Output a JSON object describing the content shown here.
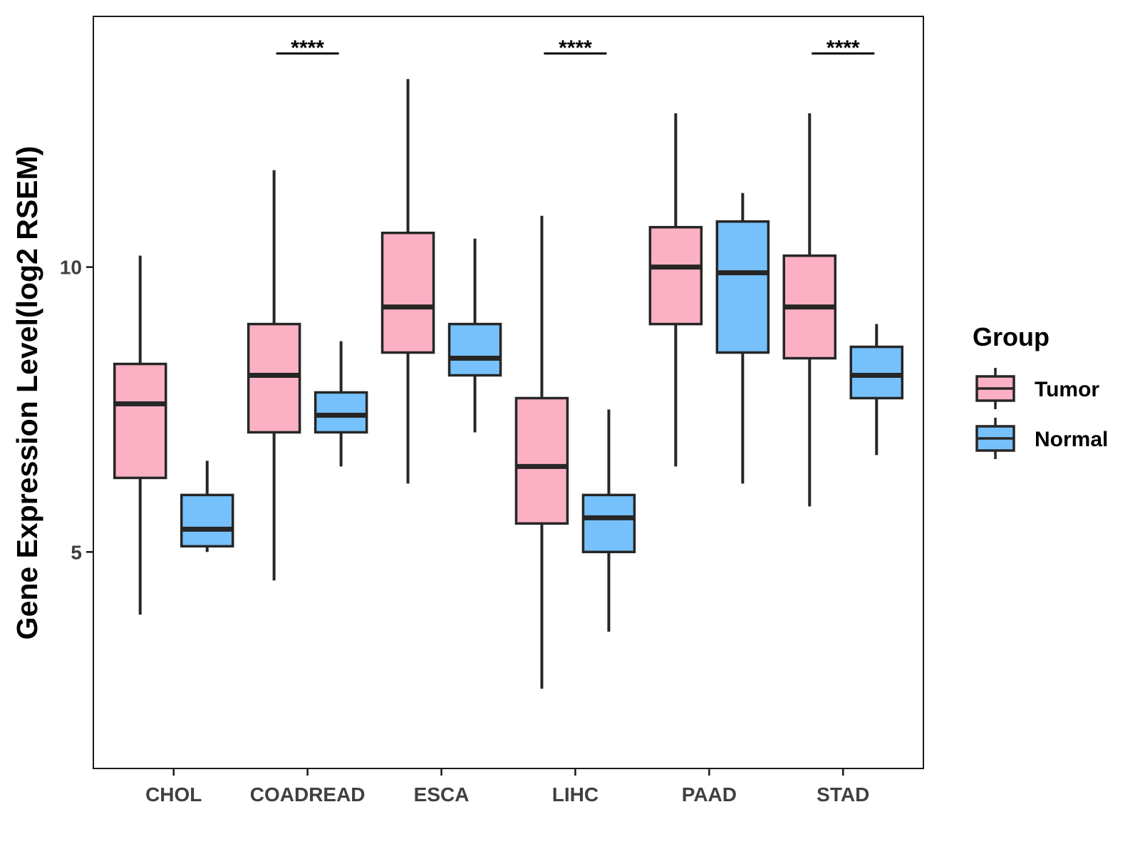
{
  "chart_data": {
    "type": "boxplot",
    "title": "",
    "xlabel": "",
    "ylabel": "Gene Expression Level(log2 RSEM)",
    "ylim": [
      1.2,
      14.4
    ],
    "y_ticks": [
      5,
      10
    ],
    "categories": [
      "CHOL",
      "COADREAD",
      "ESCA",
      "LIHC",
      "PAAD",
      "STAD"
    ],
    "legend": {
      "title": "Group",
      "position": "right",
      "entries": [
        {
          "name": "Tumor",
          "color": "#FBB1C3"
        },
        {
          "name": "Normal",
          "color": "#76C1FB"
        }
      ]
    },
    "series": [
      {
        "name": "Tumor",
        "color": "#FBB1C3",
        "boxes": [
          {
            "whisker_low": 3.9,
            "q1": 6.3,
            "median": 7.6,
            "q3": 8.3,
            "whisker_high": 10.2
          },
          {
            "whisker_low": 4.5,
            "q1": 7.1,
            "median": 8.1,
            "q3": 9.0,
            "whisker_high": 11.7
          },
          {
            "whisker_low": 6.2,
            "q1": 8.5,
            "median": 9.3,
            "q3": 10.6,
            "whisker_high": 13.3
          },
          {
            "whisker_low": 2.6,
            "q1": 5.5,
            "median": 6.5,
            "q3": 7.7,
            "whisker_high": 10.9
          },
          {
            "whisker_low": 6.5,
            "q1": 9.0,
            "median": 10.0,
            "q3": 10.7,
            "whisker_high": 12.7
          },
          {
            "whisker_low": 5.8,
            "q1": 8.4,
            "median": 9.3,
            "q3": 10.2,
            "whisker_high": 12.7
          }
        ]
      },
      {
        "name": "Normal",
        "color": "#76C1FB",
        "boxes": [
          {
            "whisker_low": 5.0,
            "q1": 5.1,
            "median": 5.4,
            "q3": 6.0,
            "whisker_high": 6.6
          },
          {
            "whisker_low": 6.5,
            "q1": 7.1,
            "median": 7.4,
            "q3": 7.8,
            "whisker_high": 8.7
          },
          {
            "whisker_low": 7.1,
            "q1": 8.1,
            "median": 8.4,
            "q3": 9.0,
            "whisker_high": 10.5
          },
          {
            "whisker_low": 3.6,
            "q1": 5.0,
            "median": 5.6,
            "q3": 6.0,
            "whisker_high": 7.5
          },
          {
            "whisker_low": 6.2,
            "q1": 8.5,
            "median": 9.9,
            "q3": 10.8,
            "whisker_high": 11.3
          },
          {
            "whisker_low": 6.7,
            "q1": 7.7,
            "median": 8.1,
            "q3": 8.6,
            "whisker_high": 9.0
          }
        ]
      }
    ],
    "significance": [
      {
        "category": "CHOL",
        "label": ""
      },
      {
        "category": "COADREAD",
        "label": "****"
      },
      {
        "category": "ESCA",
        "label": ""
      },
      {
        "category": "LIHC",
        "label": "****"
      },
      {
        "category": "PAAD",
        "label": ""
      },
      {
        "category": "STAD",
        "label": "****"
      }
    ]
  }
}
